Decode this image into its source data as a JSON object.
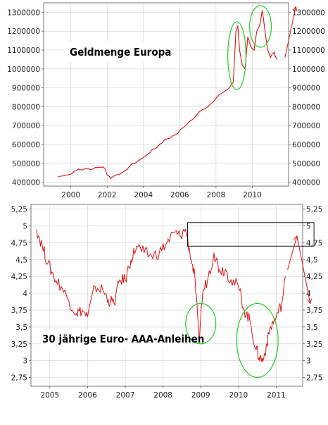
{
  "chart_data": [
    {
      "type": "line",
      "title": "Geldmenge Europa",
      "xlabel": "",
      "ylabel": "",
      "y_ticks": [
        "400000",
        "500000",
        "600000",
        "700000",
        "800000",
        "900000",
        "1000000",
        "1100000",
        "1200000",
        "1300000"
      ],
      "y_ticks_right": [
        "400000",
        "500000",
        "600000",
        "700000",
        "800000",
        "900000",
        "1000000",
        "1100000",
        "1200000",
        "1300000"
      ],
      "x_ticks": [
        "2000",
        "2002",
        "2004",
        "2006",
        "2008",
        "2010"
      ],
      "xlim": [
        1998.5,
        2012.0
      ],
      "ylim": [
        380000,
        1350000
      ],
      "grid": true,
      "colors": {
        "series": "#e01010",
        "circle": "#22cc22"
      },
      "series": [
        {
          "x": [
            1999.3,
            1999.6,
            1999.9,
            2000.2,
            2000.4,
            2000.6,
            2000.9,
            2001.2,
            2001.5,
            2001.8,
            2001.9,
            2002.0,
            2002.2,
            2002.5,
            2002.8,
            2003.0,
            2003.2,
            2003.4,
            2003.6,
            2003.9,
            2004.2,
            2004.5,
            2004.8,
            2005.0,
            2005.3,
            2005.6,
            2005.9,
            2006.2,
            2006.5,
            2006.8,
            2007.1,
            2007.4,
            2007.7,
            2008.0,
            2008.3,
            2008.6,
            2008.8,
            2008.95,
            2009.1,
            2009.2,
            2009.3,
            2009.45,
            2009.6,
            2009.75,
            2009.9,
            2010.1,
            2010.25,
            2010.4,
            2010.55,
            2010.7,
            2010.85,
            2011.0,
            2011.1,
            2011.2,
            2011.3,
            2011.4
          ],
          "y": [
            430000,
            435000,
            440000,
            460000,
            470000,
            465000,
            475000,
            470000,
            478000,
            480000,
            470000,
            440000,
            420000,
            440000,
            450000,
            462000,
            480000,
            500000,
            505000,
            525000,
            545000,
            575000,
            590000,
            605000,
            630000,
            645000,
            660000,
            690000,
            720000,
            740000,
            775000,
            790000,
            815000,
            845000,
            870000,
            890000,
            910000,
            930000,
            1200000,
            1230000,
            1100000,
            1020000,
            1000000,
            1170000,
            1120000,
            1100000,
            1200000,
            1230000,
            1310000,
            1200000,
            1100000,
            1060000,
            1080000,
            1090000,
            1060000,
            1050000
          ]
        }
      ],
      "annotations": [
        {
          "type": "circle",
          "x": 2009.15,
          "y": 1070000,
          "rx_years": 0.5,
          "ry_value": 180000
        },
        {
          "type": "circle",
          "x": 2010.45,
          "y": 1225000,
          "rx_years": 0.6,
          "ry_value": 110000
        },
        {
          "type": "arrow",
          "from_x": 2011.8,
          "from_y": 1060000,
          "to_x": 2012.4,
          "to_y": 1330000
        }
      ]
    },
    {
      "type": "line",
      "title": "30 jährige Euro- AAA-Anleihen",
      "xlabel": "",
      "ylabel": "",
      "y_ticks": [
        "2,75",
        "3",
        "3,25",
        "3,5",
        "3,75",
        "4",
        "4,25",
        "4,5",
        "4,75",
        "5",
        "5,25"
      ],
      "y_ticks_right": [
        "2,75",
        "3",
        "3,25",
        "3,5",
        "3,75",
        "4",
        "4,25",
        "4,5",
        "4,75",
        "5",
        "5,25"
      ],
      "x_ticks": [
        "2005",
        "2006",
        "2007",
        "2008",
        "2009",
        "2010",
        "2011"
      ],
      "xlim": [
        2004.5,
        2011.7
      ],
      "ylim": [
        2.62,
        5.32
      ],
      "grid": true,
      "colors": {
        "series": "#e01010",
        "circle": "#22cc22",
        "box": "#000000"
      },
      "series": [
        {
          "x": [
            2004.65,
            2004.8,
            2004.95,
            2005.1,
            2005.3,
            2005.5,
            2005.7,
            2005.85,
            2006.0,
            2006.2,
            2006.4,
            2006.55,
            2006.7,
            2006.85,
            2007.0,
            2007.15,
            2007.3,
            2007.5,
            2007.7,
            2007.9,
            2008.1,
            2008.3,
            2008.45,
            2008.6,
            2008.75,
            2008.85,
            2008.95,
            2009.05,
            2009.2,
            2009.35,
            2009.5,
            2009.65,
            2009.8,
            2010.0,
            2010.15,
            2010.3,
            2010.45,
            2010.55,
            2010.65,
            2010.75,
            2010.85,
            2011.0,
            2011.15,
            2011.25
          ],
          "y": [
            4.95,
            4.7,
            4.45,
            4.25,
            4.1,
            3.9,
            3.7,
            3.75,
            3.65,
            4.1,
            4.05,
            3.9,
            3.85,
            4.2,
            4.2,
            4.5,
            4.7,
            4.6,
            4.55,
            4.6,
            4.75,
            4.9,
            4.85,
            4.95,
            4.5,
            4.2,
            3.3,
            4.0,
            4.25,
            4.6,
            4.35,
            4.35,
            4.2,
            4.1,
            3.75,
            3.6,
            3.2,
            3.05,
            3.0,
            3.25,
            3.5,
            3.65,
            3.85,
            4.25
          ]
        }
      ],
      "annotations": [
        {
          "type": "circle",
          "x": 2009.0,
          "y": 3.55,
          "rx_years": 0.4,
          "ry_value": 0.3
        },
        {
          "type": "circle",
          "x": 2010.5,
          "y": 3.3,
          "rx_years": 0.55,
          "ry_value": 0.55
        },
        {
          "type": "box",
          "x0": 2008.65,
          "x1": 2012.0,
          "y0": 4.7,
          "y1": 5.05
        },
        {
          "type": "arrow",
          "from_x": 2011.3,
          "from_y": 4.35,
          "to_x": 2011.55,
          "to_y": 4.85
        },
        {
          "type": "arrow",
          "from_x": 2011.55,
          "from_y": 4.85,
          "to_x": 2011.9,
          "to_y": 3.85
        }
      ]
    }
  ]
}
